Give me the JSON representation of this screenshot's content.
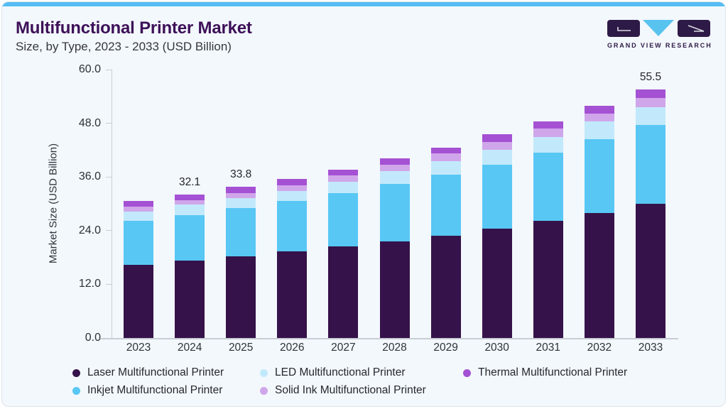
{
  "page": {
    "background": "#ffffff",
    "card_background": "#f3f8fc",
    "top_bar_color": "#56bdf2",
    "card_border_color": "#dbe4ec"
  },
  "header": {
    "title": "Multifunctional Printer Market",
    "subtitle": "Size, by Type, 2023 - 2033 (USD Billion)",
    "title_color": "#3d1058"
  },
  "logo": {
    "name": "Grand View Research",
    "text": "GRAND VIEW RESEARCH",
    "block_color": "#2e1a47",
    "triangle_color": "#59c3f0",
    "glyph_color": "#d8dbe2"
  },
  "chart_data": {
    "type": "bar",
    "stacked": true,
    "title": "Multifunctional Printer Market Size, by Type, 2023 - 2033 (USD Billion)",
    "xlabel": "",
    "ylabel": "Market Size (USD Billion)",
    "ylim": [
      0,
      60
    ],
    "yticks": [
      0,
      12,
      24,
      36,
      48,
      60
    ],
    "ytick_labels": [
      "0.0",
      "12.0",
      "24.0",
      "36.0",
      "48.0",
      "60.0"
    ],
    "grid": false,
    "legend_position": "bottom",
    "categories": [
      "2023",
      "2024",
      "2025",
      "2026",
      "2027",
      "2028",
      "2029",
      "2030",
      "2031",
      "2032",
      "2033"
    ],
    "series": [
      {
        "name": "Laser Multifunctional Printer",
        "color": "#351249",
        "values": [
          16.4,
          17.3,
          18.3,
          19.3,
          20.5,
          21.6,
          22.9,
          24.5,
          26.2,
          27.9,
          30.0
        ]
      },
      {
        "name": "Inkjet Multifunctional Printer",
        "color": "#58c7f4",
        "values": [
          9.8,
          10.2,
          10.7,
          11.3,
          11.9,
          12.8,
          13.6,
          14.3,
          15.2,
          16.6,
          17.7
        ]
      },
      {
        "name": "LED Multifunctional Printer",
        "color": "#c2e9fb",
        "values": [
          2.1,
          2.3,
          2.3,
          2.3,
          2.6,
          2.9,
          3.1,
          3.3,
          3.6,
          3.9,
          3.9
        ]
      },
      {
        "name": "Solid Ink Multifunctional Printer",
        "color": "#d0a6ea",
        "values": [
          1.1,
          1.0,
          1.1,
          1.2,
          1.3,
          1.4,
          1.6,
          1.7,
          1.8,
          1.8,
          2.1
        ]
      },
      {
        "name": "Thermal Multifunctional Printer",
        "color": "#a551d3",
        "values": [
          1.3,
          1.3,
          1.4,
          1.5,
          1.4,
          1.4,
          1.4,
          1.7,
          1.6,
          1.7,
          1.8
        ]
      }
    ],
    "totals": [
      30.7,
      32.1,
      33.8,
      35.6,
      37.7,
      40.1,
      42.6,
      45.5,
      48.4,
      51.9,
      55.5
    ],
    "annotations": [
      {
        "category": "2024",
        "label": "32.1"
      },
      {
        "category": "2025",
        "label": "33.8"
      },
      {
        "category": "2033",
        "label": "55.5"
      }
    ]
  }
}
